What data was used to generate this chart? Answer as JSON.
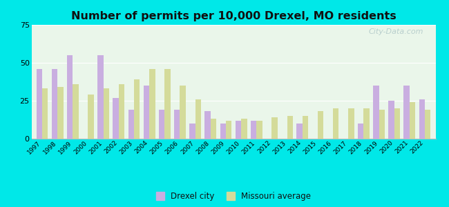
{
  "title": "Number of permits per 10,000 Drexel, MO residents",
  "years": [
    1997,
    1998,
    1999,
    2000,
    2001,
    2002,
    2003,
    2004,
    2005,
    2006,
    2007,
    2008,
    2009,
    2010,
    2011,
    2012,
    2013,
    2014,
    2015,
    2016,
    2017,
    2018,
    2019,
    2020,
    2021,
    2022
  ],
  "drexel": [
    46,
    46,
    55,
    0,
    55,
    27,
    19,
    35,
    19,
    19,
    10,
    18,
    10,
    12,
    12,
    0,
    0,
    10,
    0,
    0,
    0,
    10,
    35,
    25,
    35,
    26
  ],
  "missouri": [
    33,
    34,
    36,
    29,
    33,
    36,
    39,
    46,
    46,
    35,
    26,
    13,
    12,
    13,
    12,
    14,
    15,
    15,
    18,
    20,
    20,
    20,
    19,
    20,
    24,
    19
  ],
  "drexel_color": "#c9aee0",
  "missouri_color": "#d4db9a",
  "background_color": "#00e8e8",
  "plot_bg_color": "#eaf6ea",
  "ylim": [
    0,
    75
  ],
  "yticks": [
    0,
    25,
    50,
    75
  ],
  "bar_width": 0.38,
  "title_fontsize": 11.5,
  "tick_fontsize": 6.5,
  "ytick_fontsize": 8,
  "legend_label_drexel": "Drexel city",
  "legend_label_missouri": "Missouri average",
  "watermark": "City-Data.com"
}
